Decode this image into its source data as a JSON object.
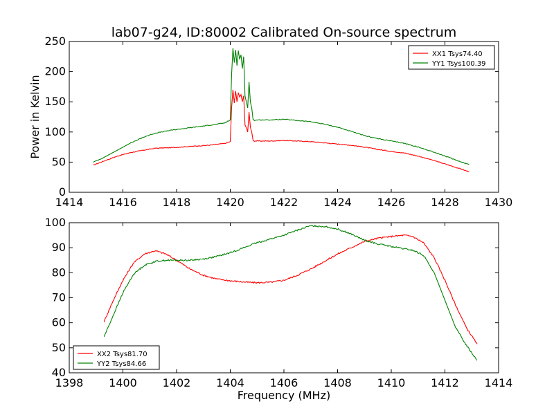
{
  "chart_data": [
    {
      "type": "line",
      "title": "lab07-g24, ID:80002 Calibrated On-source spectrum",
      "xlabel": "",
      "ylabel": "Power in Kelvin",
      "xlim": [
        1414,
        1430
      ],
      "ylim": [
        0,
        250
      ],
      "xticks": [
        1414,
        1416,
        1418,
        1420,
        1422,
        1424,
        1426,
        1428,
        1430
      ],
      "yticks": [
        0,
        50,
        100,
        150,
        200,
        250
      ],
      "legend_position": "top-right",
      "series": [
        {
          "name": "XX1 Tsys74.40",
          "color": "#ff0000",
          "x": [
            1414.9,
            1415.3,
            1415.8,
            1416.3,
            1416.8,
            1417.2,
            1417.8,
            1418.5,
            1419.2,
            1419.8,
            1420.0,
            1420.05,
            1420.1,
            1420.15,
            1420.2,
            1420.25,
            1420.3,
            1420.35,
            1420.4,
            1420.45,
            1420.5,
            1420.55,
            1420.6,
            1420.65,
            1420.7,
            1420.75,
            1420.8,
            1420.85,
            1420.9,
            1421.0,
            1421.5,
            1422.0,
            1422.5,
            1423.0,
            1423.5,
            1424.0,
            1424.5,
            1425.0,
            1425.5,
            1426.0,
            1426.5,
            1427.0,
            1427.5,
            1428.0,
            1428.5,
            1428.9
          ],
          "y": [
            45,
            52,
            60,
            66,
            70,
            73,
            74,
            76,
            78,
            81,
            84,
            140,
            170,
            148,
            168,
            150,
            165,
            158,
            162,
            150,
            160,
            112,
            107,
            100,
            133,
            108,
            100,
            86,
            85,
            85,
            85,
            86,
            85,
            84,
            82,
            80,
            78,
            75,
            71,
            68,
            65,
            60,
            54,
            47,
            40,
            34
          ]
        },
        {
          "name": "YY1 Tsys100.39",
          "color": "#008000",
          "x": [
            1414.9,
            1415.3,
            1415.8,
            1416.3,
            1416.8,
            1417.2,
            1417.8,
            1418.5,
            1419.2,
            1419.8,
            1420.0,
            1420.05,
            1420.1,
            1420.15,
            1420.2,
            1420.25,
            1420.3,
            1420.35,
            1420.4,
            1420.45,
            1420.5,
            1420.55,
            1420.6,
            1420.65,
            1420.7,
            1420.75,
            1420.8,
            1420.85,
            1420.9,
            1421.0,
            1421.5,
            1422.0,
            1422.5,
            1423.0,
            1423.5,
            1424.0,
            1424.5,
            1425.0,
            1425.5,
            1426.0,
            1426.5,
            1427.0,
            1427.5,
            1428.0,
            1428.5,
            1428.9
          ],
          "y": [
            50,
            58,
            70,
            82,
            92,
            98,
            103,
            107,
            111,
            115,
            120,
            195,
            239,
            215,
            236,
            210,
            235,
            220,
            228,
            205,
            225,
            160,
            150,
            140,
            183,
            150,
            140,
            121,
            119,
            120,
            120,
            121,
            119,
            117,
            113,
            108,
            101,
            94,
            89,
            85,
            81,
            75,
            68,
            60,
            52,
            46
          ]
        }
      ]
    },
    {
      "type": "line",
      "title": "",
      "xlabel": "Frequency (MHz)",
      "ylabel": "",
      "xlim": [
        1398,
        1414
      ],
      "ylim": [
        40,
        100
      ],
      "xticks": [
        1398,
        1400,
        1402,
        1404,
        1406,
        1408,
        1410,
        1412,
        1414
      ],
      "yticks": [
        40,
        50,
        60,
        70,
        80,
        90,
        100
      ],
      "legend_position": "bottom-left",
      "series": [
        {
          "name": "XX2 Tsys81.70",
          "color": "#ff0000",
          "x": [
            1399.3,
            1399.6,
            1400.0,
            1400.4,
            1400.8,
            1401.2,
            1401.6,
            1402.0,
            1402.5,
            1403.0,
            1403.5,
            1404.0,
            1404.5,
            1405.0,
            1405.5,
            1406.0,
            1406.5,
            1407.0,
            1407.5,
            1408.0,
            1408.5,
            1409.0,
            1409.5,
            1410.0,
            1410.5,
            1410.8,
            1411.2,
            1411.6,
            1412.0,
            1412.4,
            1412.8,
            1413.2
          ],
          "y": [
            60.5,
            68,
            77,
            84,
            87.5,
            88.8,
            87.5,
            85,
            81.5,
            79,
            77.5,
            76.8,
            76.3,
            76,
            76.2,
            77,
            79,
            81.5,
            84.5,
            87.5,
            90,
            92.5,
            93.8,
            94.5,
            95,
            94.5,
            92,
            86,
            77,
            67,
            58,
            51.5
          ]
        },
        {
          "name": "YY2 Tsys84.66",
          "color": "#008000",
          "x": [
            1399.3,
            1399.6,
            1400.0,
            1400.4,
            1400.8,
            1401.2,
            1401.6,
            1402.0,
            1402.5,
            1403.0,
            1403.5,
            1404.0,
            1404.5,
            1405.0,
            1405.5,
            1406.0,
            1406.5,
            1407.0,
            1407.5,
            1408.0,
            1408.5,
            1409.0,
            1409.5,
            1410.0,
            1410.5,
            1410.8,
            1411.2,
            1411.6,
            1412.0,
            1412.4,
            1412.8,
            1413.2
          ],
          "y": [
            54.5,
            62,
            72,
            79.5,
            83,
            84.5,
            85,
            85,
            85,
            85.5,
            86.5,
            88,
            90,
            92,
            93.5,
            95,
            97,
            98.8,
            98.5,
            97.5,
            95.5,
            93,
            91.5,
            90.5,
            89.5,
            89,
            87,
            80,
            69,
            58,
            51,
            45
          ]
        }
      ]
    }
  ]
}
